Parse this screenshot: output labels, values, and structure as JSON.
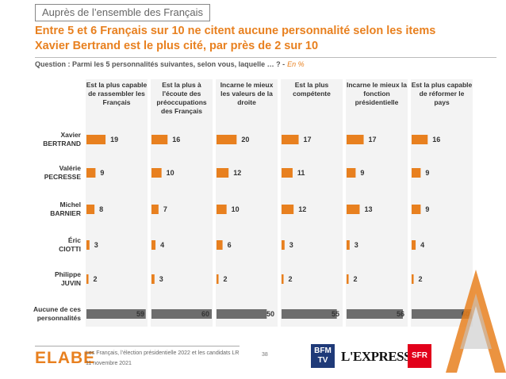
{
  "header": {
    "tag": "Auprès de l’ensemble des Français",
    "title_line1": "Entre 5 et 6 Français sur 10 ne citent aucune personnalité selon les items",
    "title_line2": "Xavier Bertrand est le plus cité, par près de 2 sur 10",
    "question": "Question : Parmi les 5 personnalités suivantes, selon vous, laquelle … ? -",
    "unit": "En %"
  },
  "colors": {
    "accent": "#e8801f",
    "none_bar": "#6d6d6d",
    "column_bg": "#f3f3f3"
  },
  "chart_data": {
    "type": "bar",
    "orientation": "horizontal",
    "columns": [
      "Est la plus capable de rassembler les Français",
      "Est la plus à l'écoute des préoccupations des Français",
      "Incarne le mieux les valeurs de la droite",
      "Est la plus compétente",
      "Incarne le mieux la fonction présidentielle",
      "Est la plus capable de réformer le pays"
    ],
    "rows": [
      {
        "label": "Xavier BERTRAND",
        "label_lines": [
          "Xavier",
          "BERTRAND"
        ],
        "values": [
          19,
          16,
          20,
          17,
          17,
          16
        ]
      },
      {
        "label": "Valérie PECRESSE",
        "label_lines": [
          "Valérie",
          "PECRESSE"
        ],
        "values": [
          9,
          10,
          12,
          11,
          9,
          9
        ]
      },
      {
        "label": "Michel BARNIER",
        "label_lines": [
          "Michel",
          "BARNIER"
        ],
        "values": [
          8,
          7,
          10,
          12,
          13,
          9
        ]
      },
      {
        "label": "Éric CIOTTI",
        "label_lines": [
          "Éric",
          "CIOTTI"
        ],
        "values": [
          3,
          4,
          6,
          3,
          3,
          4
        ]
      },
      {
        "label": "Philippe JUVIN",
        "label_lines": [
          "Philippe",
          "JUVIN"
        ],
        "values": [
          2,
          3,
          2,
          2,
          2,
          2
        ]
      },
      {
        "label": "Aucune de ces personnalités",
        "label_lines": [
          "Aucune de ces",
          "personnalités"
        ],
        "values": [
          59,
          60,
          50,
          55,
          56,
          60
        ]
      }
    ],
    "unit": "%"
  },
  "footer": {
    "logo": "ELABE",
    "source_line1": "Les Français, l’élection présidentielle 2022 et les candidats LR",
    "source_line2": "11 novembre 2021",
    "page": "38",
    "partner1": "BFM TV",
    "partner2": "L'EXPRESS",
    "partner3": "SFR"
  }
}
